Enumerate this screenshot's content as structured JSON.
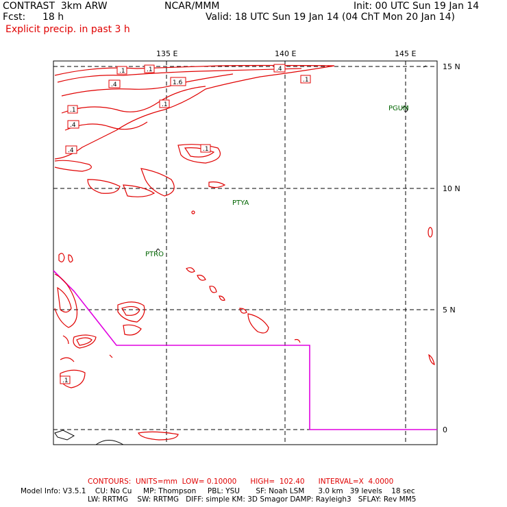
{
  "header": {
    "product": "CONTRAST  3km ARW",
    "center": "NCAR/MMM",
    "init": "Init: 00 UTC Sun 19 Jan 14",
    "fcst_label": "Fcst:",
    "fcst_value": "18 h",
    "valid": "Valid: 18 UTC Sun 19 Jan 14 (04 ChT Mon 20 Jan 14)",
    "field": "Explicit precip. in past 3 h"
  },
  "map": {
    "lon_labels": [
      "135 E",
      "140 E",
      "145 E"
    ],
    "lat_labels": [
      "15 N",
      "10 N",
      "5 N",
      "0"
    ],
    "stations": [
      "PGUM",
      "PTYA",
      "PTRO"
    ],
    "contour_labels": [
      ".1",
      ".1",
      ".4",
      "1.6",
      ".4",
      ".1",
      ".1",
      ".4",
      ".4",
      ".1",
      ".1",
      ".1"
    ],
    "colors": {
      "contour": "#e00000",
      "boundary": "#e000e0",
      "station": "#006400"
    }
  },
  "footer": {
    "contours": "CONTOURS:  UNITS=mm  LOW= 0.10000      HIGH=  102.40      INTERVAL=X  4.0000",
    "model_line1": "Model Info: V3.5.1    CU: No Cu     MP: Thompson     PBL: YSU       SF: Noah LSM      3.0 km   39 levels    18 sec",
    "model_line2": "LW: RRTMG    SW: RRTMG   DIFF: simple KM: 3D Smagor DAMP: Rayleigh3   SFLAY: Rev MM5"
  }
}
